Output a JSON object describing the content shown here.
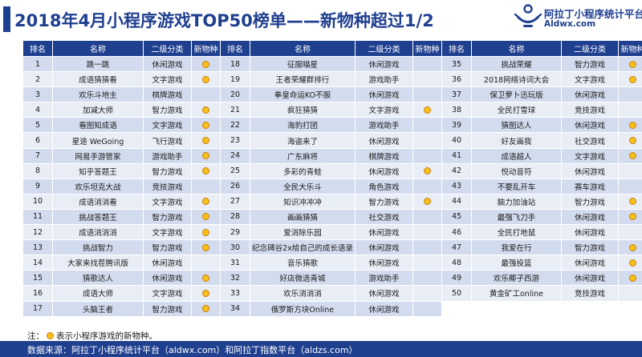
{
  "header": {
    "title": "2018年4月小程序游戏TOP50榜单——新物种超过1/2"
  },
  "logo": {
    "name": "阿拉丁小程序统计平台",
    "domain": "Aldwx.com",
    "icon": "aladdin-lamp-icon"
  },
  "table": {
    "columns": [
      "排名",
      "名称",
      "二级分类",
      "新物种"
    ],
    "marker_color": "#f6c21a",
    "rows": [
      {
        "rank": "1",
        "name": "跳一跳",
        "category": "休闲游戏",
        "new": true
      },
      {
        "rank": "2",
        "name": "成语猜猜看",
        "category": "文字游戏",
        "new": true
      },
      {
        "rank": "3",
        "name": "欢乐斗地主",
        "category": "棋牌游戏",
        "new": false
      },
      {
        "rank": "4",
        "name": "加减大师",
        "category": "智力游戏",
        "new": true
      },
      {
        "rank": "5",
        "name": "看图知成语",
        "category": "文字游戏",
        "new": true
      },
      {
        "rank": "6",
        "name": "星途 WeGoing",
        "category": "飞行游戏",
        "new": true
      },
      {
        "rank": "7",
        "name": "网易手游管家",
        "category": "游戏助手",
        "new": true
      },
      {
        "rank": "8",
        "name": "知乎答题王",
        "category": "智力游戏",
        "new": true
      },
      {
        "rank": "9",
        "name": "欢乐坦克大战",
        "category": "竞技游戏",
        "new": false
      },
      {
        "rank": "10",
        "name": "成语消消看",
        "category": "文字游戏",
        "new": true
      },
      {
        "rank": "11",
        "name": "挑战答题王",
        "category": "智力游戏",
        "new": true
      },
      {
        "rank": "12",
        "name": "成语消消消",
        "category": "文字游戏",
        "new": true
      },
      {
        "rank": "13",
        "name": "挑战智力",
        "category": "智力游戏",
        "new": true
      },
      {
        "rank": "14",
        "name": "大家来找茬腾讯版",
        "category": "休闲游戏",
        "new": false
      },
      {
        "rank": "15",
        "name": "猜歌达人",
        "category": "休闲游戏",
        "new": true
      },
      {
        "rank": "16",
        "name": "成语大师",
        "category": "文字游戏",
        "new": true
      },
      {
        "rank": "17",
        "name": "头脑王者",
        "category": "智力游戏",
        "new": true
      },
      {
        "rank": "18",
        "name": "征服喵星",
        "category": "休闲游戏",
        "new": false
      },
      {
        "rank": "19",
        "name": "王者荣耀群排行",
        "category": "游戏助手",
        "new": false
      },
      {
        "rank": "20",
        "name": "拳皇命运KO不服",
        "category": "休闲游戏",
        "new": false
      },
      {
        "rank": "21",
        "name": "疯狂猜猜",
        "category": "文字游戏",
        "new": true
      },
      {
        "rank": "22",
        "name": "海豹打团",
        "category": "游戏助手",
        "new": false
      },
      {
        "rank": "23",
        "name": "海盗来了",
        "category": "休闲游戏",
        "new": false
      },
      {
        "rank": "24",
        "name": "广东麻将",
        "category": "棋牌游戏",
        "new": false
      },
      {
        "rank": "25",
        "name": "多彩的青蛙",
        "category": "休闲游戏",
        "new": true
      },
      {
        "rank": "26",
        "name": "全民大乐斗",
        "category": "角色游戏",
        "new": false
      },
      {
        "rank": "27",
        "name": "知识冲冲冲",
        "category": "智力游戏",
        "new": true
      },
      {
        "rank": "28",
        "name": "画画猜猜",
        "category": "社交游戏",
        "new": false
      },
      {
        "rank": "29",
        "name": "爱消除乐园",
        "category": "休闲游戏",
        "new": false
      },
      {
        "rank": "30",
        "name": "纪念碑谷2x给自己的成长语录",
        "category": "休闲游戏",
        "new": false
      },
      {
        "rank": "31",
        "name": "音乐猜歌",
        "category": "休闲游戏",
        "new": false
      },
      {
        "rank": "32",
        "name": "好店微选青城",
        "category": "游戏助手",
        "new": false
      },
      {
        "rank": "33",
        "name": "欢乐消消消",
        "category": "休闲游戏",
        "new": false
      },
      {
        "rank": "34",
        "name": "俄罗斯方块Online",
        "category": "休闲游戏",
        "new": false
      },
      {
        "rank": "35",
        "name": "挑战荣耀",
        "category": "智力游戏",
        "new": true
      },
      {
        "rank": "36",
        "name": "2018网络诗词大会",
        "category": "文字游戏",
        "new": true
      },
      {
        "rank": "37",
        "name": "保卫萝卜迅玩版",
        "category": "休闲游戏",
        "new": false
      },
      {
        "rank": "38",
        "name": "全民打雪球",
        "category": "竞技游戏",
        "new": false
      },
      {
        "rank": "39",
        "name": "猜图达人",
        "category": "休闲游戏",
        "new": true
      },
      {
        "rank": "40",
        "name": "好友画我",
        "category": "社交游戏",
        "new": true
      },
      {
        "rank": "41",
        "name": "成语超人",
        "category": "文字游戏",
        "new": true
      },
      {
        "rank": "42",
        "name": "悦动音符",
        "category": "休闲游戏",
        "new": false
      },
      {
        "rank": "43",
        "name": "不要乱开车",
        "category": "赛车游戏",
        "new": false
      },
      {
        "rank": "44",
        "name": "脑力加油站",
        "category": "智力游戏",
        "new": true
      },
      {
        "rank": "45",
        "name": "最强飞刀手",
        "category": "休闲游戏",
        "new": true
      },
      {
        "rank": "46",
        "name": "全民打地鼠",
        "category": "休闲游戏",
        "new": false
      },
      {
        "rank": "47",
        "name": "我爱在行",
        "category": "智力游戏",
        "new": true
      },
      {
        "rank": "48",
        "name": "最强投篮",
        "category": "休闲游戏",
        "new": true
      },
      {
        "rank": "49",
        "name": "欢乐椰子西游",
        "category": "休闲游戏",
        "new": true
      },
      {
        "rank": "50",
        "name": "黄金矿工online",
        "category": "竞技游戏",
        "new": false
      }
    ]
  },
  "note": {
    "prefix": "注：",
    "suffix": "表示小程序游戏的新物种。"
  },
  "footer": {
    "source": "数据来源：阿拉丁小程序统计平台（aldwx.com）和阿拉丁指数平台（aldzs.com）"
  }
}
